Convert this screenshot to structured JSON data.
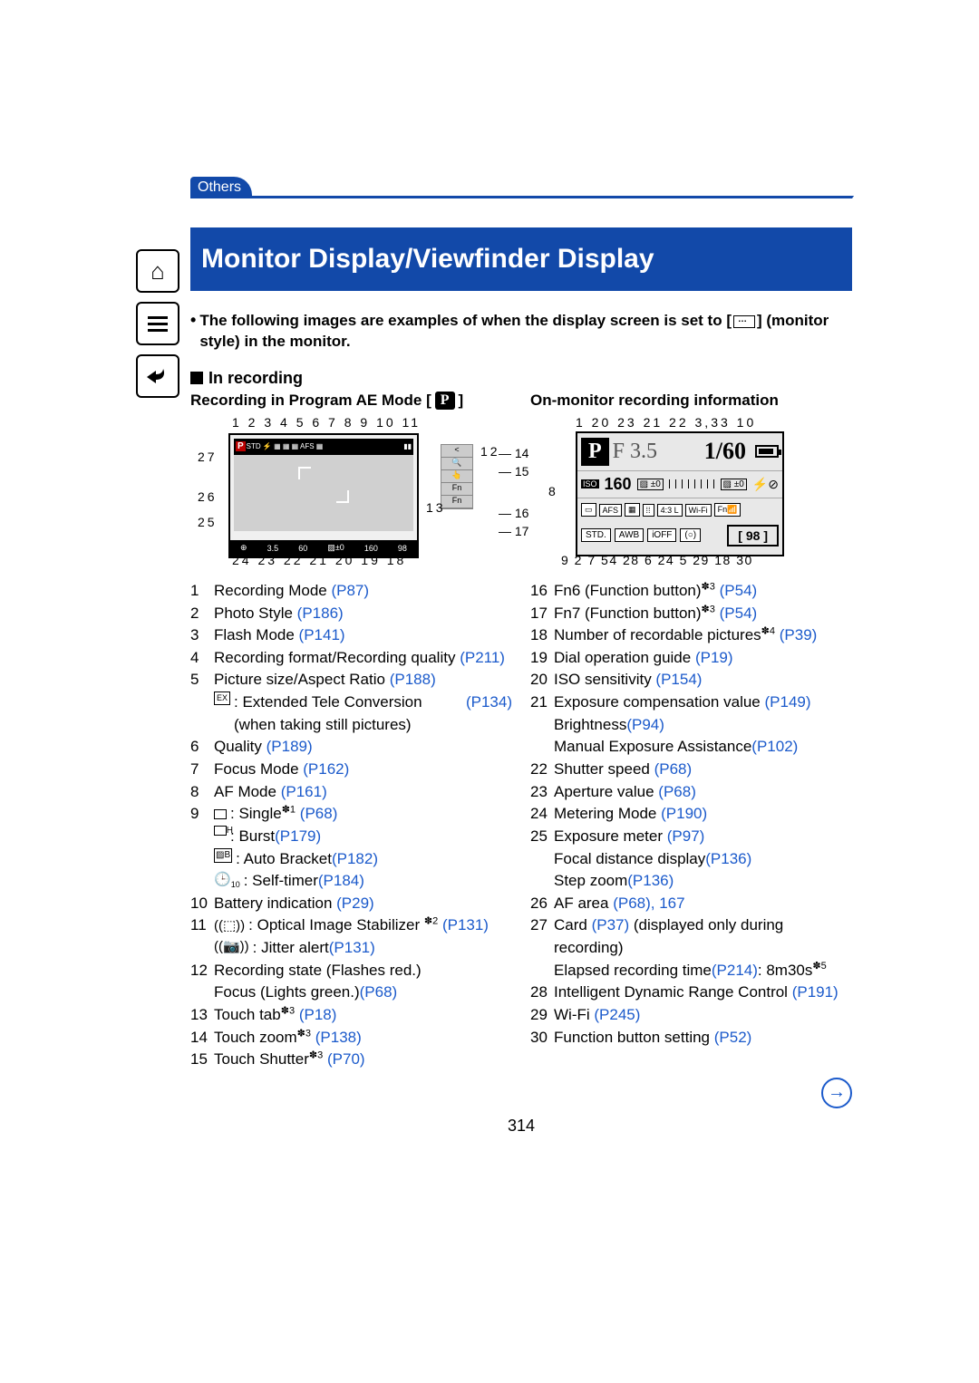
{
  "header": {
    "breadcrumb": "Others",
    "title": "Monitor Display/Viewfinder Display"
  },
  "intro": "The following images are examples of when the display screen is set to [    ] (monitor style) in the monitor.",
  "subheading": "In recording",
  "columns": {
    "left": {
      "title": "Recording in Program AE Mode [",
      "title_close": "]",
      "callouts_top": "1   2    3      4    5   6  7   8   9  10  11",
      "callouts_left": [
        "27",
        "26",
        "25"
      ],
      "callouts_bottom": "24  23  22    21        20   19        18",
      "callouts_right": [
        "12",
        "13",
        "14",
        "15",
        "16",
        "17"
      ],
      "display": {
        "mode": "P",
        "aperture": "3.5",
        "shutter": "60",
        "exp": "±0",
        "iso": "160",
        "count": "98"
      }
    },
    "right": {
      "title": "On-monitor recording information",
      "callouts_top": "1 20     23       21    22     3,33 10",
      "callouts_left": [
        "8"
      ],
      "callouts_bottom": "9  2     7  54  28  6  24 5      29    18        30",
      "display": {
        "mode": "P",
        "F": "F 3.5",
        "shutter": "1/60",
        "iso_label": "ISO",
        "iso": "160",
        "exp1": "±0",
        "exp2": "±0",
        "afs": "AFS",
        "wifi": "Wi-Fi",
        "fn": "Fn",
        "std": "STD.",
        "awb": "AWB",
        "ioff": "iOFF",
        "count": "98"
      }
    }
  },
  "items": [
    {
      "n": "1",
      "col": "l",
      "t": [
        {
          "text": "Recording Mode ",
          "link": "P87"
        }
      ]
    },
    {
      "n": "2",
      "col": "l",
      "t": [
        {
          "text": "Photo Style ",
          "link": "P186"
        }
      ]
    },
    {
      "n": "3",
      "col": "l",
      "t": [
        {
          "text": "Flash Mode ",
          "link": "P141"
        }
      ]
    },
    {
      "n": "4",
      "col": "l",
      "t": [
        {
          "text": "Recording format/Recording quality ",
          "link": "P211"
        }
      ]
    },
    {
      "n": "5",
      "col": "l",
      "t": [
        {
          "text": "Picture size/Aspect Ratio ",
          "link": "P188"
        }
      ],
      "subs": [
        {
          "glyph": "ex",
          "text": ": Extended Tele Conversion (when taking still pictures) ",
          "link": "P134"
        }
      ]
    },
    {
      "n": "6",
      "col": "l",
      "t": [
        {
          "text": "Quality ",
          "link": "P189"
        }
      ]
    },
    {
      "n": "7",
      "col": "l",
      "t": [
        {
          "text": "Focus Mode ",
          "link": "P162"
        }
      ]
    },
    {
      "n": "8",
      "col": "l",
      "t": [
        {
          "text": "AF Mode ",
          "link": "P161"
        }
      ]
    },
    {
      "n": "9",
      "col": "l",
      "t": [
        {
          "glyph": "box",
          "text": ": Single",
          "sup": "✽1",
          " link": " ",
          "link": "P68"
        }
      ],
      "subs": [
        {
          "glyph": "boxh",
          "text": ": Burst ",
          "link": "P179"
        },
        {
          "glyph": "ab",
          "text": ": Auto Bracket ",
          "link": "P182"
        },
        {
          "glyph": "timer",
          "text": ": Self-timer ",
          "link": "P184"
        }
      ]
    },
    {
      "n": "10",
      "col": "l",
      "t": [
        {
          "text": "Battery indication ",
          "link": "P29"
        }
      ]
    },
    {
      "n": "11",
      "col": "l",
      "t": [
        {
          "glyph": "ois",
          "text": ": Optical Image Stabilizer ",
          "sup": "✽2",
          "link": " P131"
        }
      ],
      "subs": [
        {
          "glyph": "jitter",
          "text": ": Jitter alert ",
          "link": "P131"
        }
      ]
    },
    {
      "n": "12",
      "col": "l",
      "t": [
        {
          "text": "Recording state (Flashes red.)"
        }
      ],
      "subs": [
        {
          "text": "Focus (Lights green.) ",
          "link": "P68"
        }
      ]
    },
    {
      "n": "13",
      "col": "l",
      "t": [
        {
          "text": "Touch tab",
          "sup": "✽3",
          " ": " ",
          "link": "P18"
        }
      ]
    },
    {
      "n": "14",
      "col": "l",
      "t": [
        {
          "text": "Touch zoom",
          "sup": "✽3",
          "link": " P138"
        }
      ]
    },
    {
      "n": "15",
      "col": "l",
      "t": [
        {
          "text": "Touch Shutter",
          "sup": "✽3",
          "link": " P70"
        }
      ]
    },
    {
      "n": "16",
      "col": "r",
      "t": [
        {
          "text": "Fn6 (Function button)",
          "sup": "✽3",
          "link": " P54"
        }
      ]
    },
    {
      "n": "17",
      "col": "r",
      "t": [
        {
          "text": "Fn7 (Function button)",
          "sup": "✽3",
          "link": " P54"
        }
      ]
    },
    {
      "n": "18",
      "col": "r",
      "t": [
        {
          "text": "Number of recordable pictures",
          "sup": "✽4",
          "link": " P39"
        }
      ]
    },
    {
      "n": "19",
      "col": "r",
      "t": [
        {
          "text": "Dial operation guide ",
          "link": "P19"
        }
      ]
    },
    {
      "n": "20",
      "col": "r",
      "t": [
        {
          "text": "ISO sensitivity ",
          "link": "P154"
        }
      ]
    },
    {
      "n": "21",
      "col": "r",
      "t": [
        {
          "text": "Exposure compensation value ",
          "link": "P149"
        }
      ],
      "subs": [
        {
          "text": "Brightness ",
          "link": "P94"
        },
        {
          "text": "Manual Exposure Assistance ",
          "link": "P102"
        }
      ]
    },
    {
      "n": "22",
      "col": "r",
      "t": [
        {
          "text": "Shutter speed ",
          "link": "P68"
        }
      ]
    },
    {
      "n": "23",
      "col": "r",
      "t": [
        {
          "text": "Aperture value ",
          "link": "P68"
        }
      ]
    },
    {
      "n": "24",
      "col": "r",
      "t": [
        {
          "text": "Metering Mode ",
          "link": "P190"
        }
      ]
    },
    {
      "n": "25",
      "col": "r",
      "t": [
        {
          "text": "Exposure meter ",
          "link": "P97"
        }
      ],
      "subs": [
        {
          "text": "Focal distance display ",
          "link": "P136"
        },
        {
          "text": "Step zoom ",
          "link": "P136"
        }
      ]
    },
    {
      "n": "26",
      "col": "r",
      "t": [
        {
          "text": "AF area ",
          "link": "P68",
          "link2": "167"
        }
      ]
    },
    {
      "n": "27",
      "col": "r",
      "t": [
        {
          "text": "Card ",
          "link": "P37",
          "after": " (displayed only during recording)"
        }
      ],
      "subs": [
        {
          "text": "Elapsed recording time ",
          "link": "P214",
          "after": ":  8m30s",
          "sup2": "✽5"
        }
      ]
    },
    {
      "n": "28",
      "col": "r",
      "t": [
        {
          "text": "Intelligent Dynamic Range Control ",
          "link": "P191"
        }
      ]
    },
    {
      "n": "29",
      "col": "r",
      "t": [
        {
          "text": "Wi-Fi ",
          "link": "P245"
        }
      ]
    },
    {
      "n": "30",
      "col": "r",
      "t": [
        {
          "text": "Function button setting ",
          "link": "P52"
        }
      ]
    }
  ],
  "pageNumber": "314",
  "colors": {
    "accent": "#1249a9",
    "link": "#1b5acb"
  }
}
